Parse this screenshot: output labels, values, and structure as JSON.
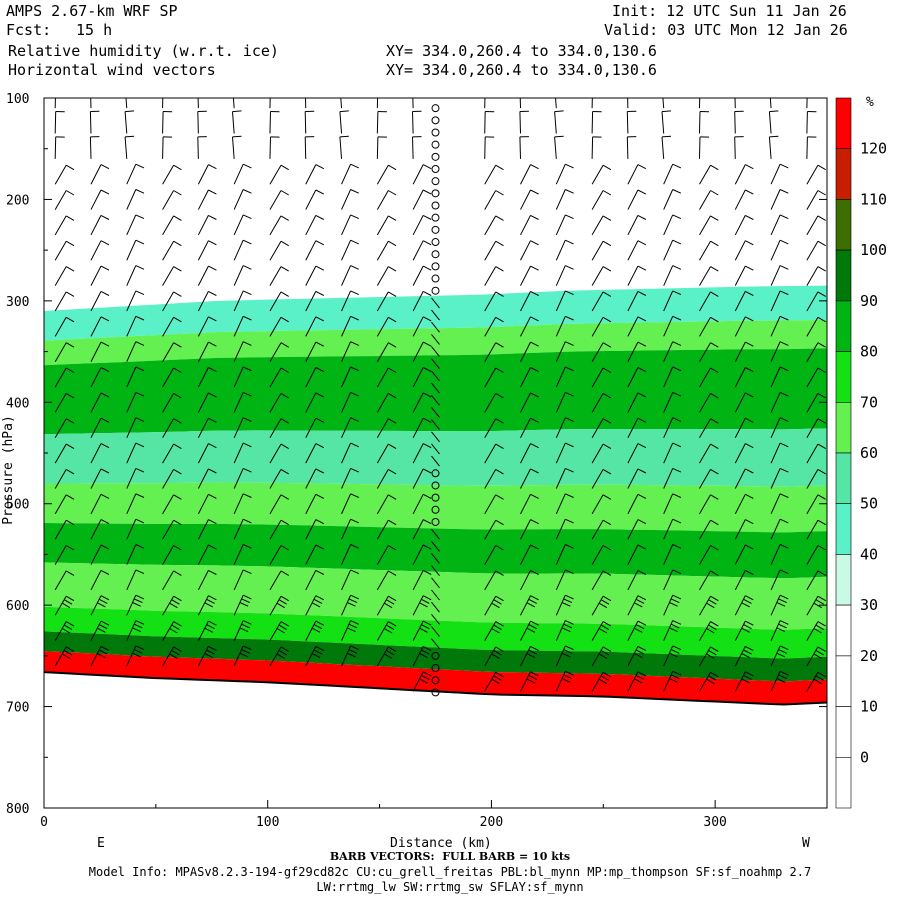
{
  "header": {
    "model": "AMPS 2.67-km WRF SP",
    "init": "Init: 12 UTC Sun 11 Jan 26",
    "fcst_label": "Fcst:",
    "fcst_value": "15 h",
    "valid": "Valid: 03 UTC Mon 12 Jan 26",
    "field1": "Relative humidity (w.r.t. ice)",
    "field2": "Horizontal wind vectors",
    "xy1": "XY= 334.0,260.4 to 334.0,130.6",
    "xy2": "XY= 334.0,260.4 to 334.0,130.6"
  },
  "footer": {
    "barb_note": "BARB VECTORS:  FULL BARB = 10 kts",
    "model_info": "Model Info: MPASv8.2.3-194-gf29cd82c CU:cu_grell_freitas PBL:bl_mynn MP:mp_thompson SF:sf_noahmp 2.7",
    "model_info2": "LW:rrtmg_lw SW:rrtmg_sw SFLAY:sf_mynn"
  },
  "chart_data": {
    "type": "heatmap",
    "title": "Relative humidity (w.r.t. ice) cross section with horizontal wind barbs",
    "xlabel": "Distance (km)",
    "ylabel": "Pressure (hPa)",
    "xlim": [
      0,
      350
    ],
    "ylim": [
      800,
      100
    ],
    "x_ticks": [
      "0",
      "100",
      "200",
      "300"
    ],
    "y_ticks": [
      "100",
      "200",
      "300",
      "400",
      "500",
      "600",
      "700",
      "800"
    ],
    "x_ends": {
      "left": "E",
      "right": "W"
    },
    "colorbar": {
      "unit": "%",
      "ticks": [
        "120",
        "110",
        "100",
        "90",
        "80",
        "70",
        "60",
        "50",
        "40",
        "30",
        "20",
        "10",
        "0"
      ],
      "bins": [
        {
          "range": [
            120,
            130
          ],
          "color": "#ff0000"
        },
        {
          "range": [
            110,
            120
          ],
          "color": "#c81e00"
        },
        {
          "range": [
            100,
            110
          ],
          "color": "#3c6e00"
        },
        {
          "range": [
            90,
            100
          ],
          "color": "#00780a"
        },
        {
          "range": [
            80,
            90
          ],
          "color": "#00b414"
        },
        {
          "range": [
            70,
            80
          ],
          "color": "#14e114"
        },
        {
          "range": [
            60,
            70
          ],
          "color": "#64f050"
        },
        {
          "range": [
            50,
            60
          ],
          "color": "#55e6a5"
        },
        {
          "range": [
            40,
            50
          ],
          "color": "#5af0c8"
        },
        {
          "range": [
            30,
            40
          ],
          "color": "#c8fae6"
        },
        {
          "range": [
            20,
            30
          ],
          "color": "#ffffff"
        },
        {
          "range": [
            10,
            20
          ],
          "color": "#ffffff"
        },
        {
          "range": [
            0,
            10
          ],
          "color": "#ffffff"
        }
      ]
    },
    "surface_pressure": {
      "x": [
        0,
        50,
        100,
        150,
        175,
        200,
        250,
        300,
        330,
        350
      ],
      "p": [
        658,
        664,
        668,
        674,
        677,
        680,
        682,
        687,
        690,
        688
      ]
    },
    "moist_layer_top_p": [
      310,
      305,
      300,
      298,
      296,
      294,
      290,
      288,
      286,
      285
    ],
    "rh_bands": [
      {
        "p_top": 300,
        "p_bot": 330,
        "rh": 45
      },
      {
        "p_top": 330,
        "p_bot": 355,
        "rh": 65
      },
      {
        "p_top": 355,
        "p_bot": 425,
        "rh": 85
      },
      {
        "p_top": 425,
        "p_bot": 475,
        "rh": 55
      },
      {
        "p_top": 475,
        "p_bot": 515,
        "rh": 65
      },
      {
        "p_top": 515,
        "p_bot": 555,
        "rh": 80
      },
      {
        "p_top": 555,
        "p_bot": 600,
        "rh": 65
      },
      {
        "p_top": 600,
        "p_bot": 625,
        "rh": 75
      },
      {
        "p_top": 625,
        "p_bot": 645,
        "rh": 95
      },
      {
        "p_top": 645,
        "p_bot": 700,
        "rh": 125
      }
    ],
    "barbs": {
      "calm_column_km": 175,
      "speed_kts_typical": 15,
      "direction_deg_typical": 330
    }
  }
}
